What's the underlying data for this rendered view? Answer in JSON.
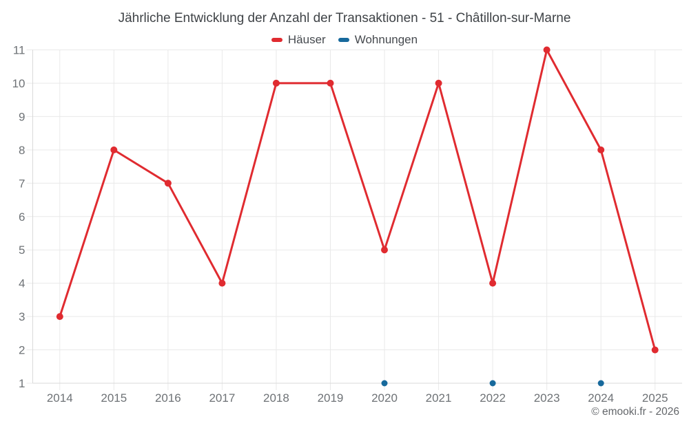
{
  "header": {
    "title": "Jährliche Entwicklung der Anzahl der Transaktionen - 51 - Châtillon-sur-Marne"
  },
  "legend": {
    "items": [
      {
        "label": "Häuser"
      },
      {
        "label": "Wohnungen"
      }
    ]
  },
  "footer": {
    "copyright": "© emooki.fr - 2026"
  },
  "chart_data": {
    "type": "line",
    "title": "Jährliche Entwicklung der Anzahl der Transaktionen - 51 - Châtillon-sur-Marne",
    "categories": [
      "2014",
      "2015",
      "2016",
      "2017",
      "2018",
      "2019",
      "2020",
      "2021",
      "2022",
      "2023",
      "2024",
      "2025"
    ],
    "series": [
      {
        "name": "Häuser",
        "color": "#e02b30",
        "marker_radius": 5,
        "line_width": 3,
        "values": [
          3,
          8,
          7,
          4,
          10,
          10,
          5,
          10,
          4,
          11,
          8,
          2
        ]
      },
      {
        "name": "Wohnungen",
        "color": "#17699c",
        "marker_radius": 4.5,
        "line_width": 3,
        "values": [
          null,
          null,
          null,
          null,
          null,
          null,
          1,
          null,
          1,
          null,
          1,
          null
        ]
      }
    ],
    "xlabel": "",
    "ylabel": "",
    "ylim": [
      1,
      11
    ],
    "yticks": [
      1,
      2,
      3,
      4,
      5,
      6,
      7,
      8,
      9,
      10,
      11
    ],
    "grid": true,
    "grid_color": "#e9e9e9",
    "axis_color": "#d9d9d9",
    "legend_position": "top",
    "background": "#ffffff"
  }
}
